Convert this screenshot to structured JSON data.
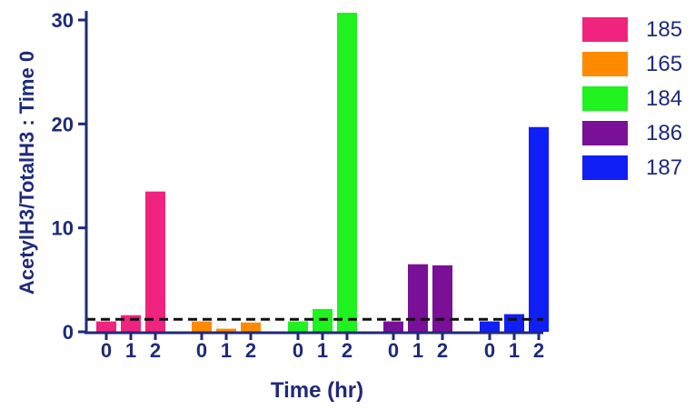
{
  "chart_data": {
    "type": "bar",
    "xlabel": "Time (hr)",
    "ylabel": "AcetylH3/TotalH3 : Time 0",
    "ylim": [
      0,
      31
    ],
    "yticks": [
      0,
      10,
      20,
      30
    ],
    "reference_line": 1.2,
    "grid": false,
    "legend_position": "right",
    "series": [
      {
        "name": "185",
        "color": "#f0237f",
        "categories": [
          "0",
          "1",
          "2"
        ],
        "values": [
          1.0,
          1.6,
          13.5
        ]
      },
      {
        "name": "165",
        "color": "#ff8a00",
        "categories": [
          "0",
          "1",
          "2"
        ],
        "values": [
          1.0,
          0.3,
          0.9
        ]
      },
      {
        "name": "184",
        "color": "#1ff21f",
        "categories": [
          "0",
          "1",
          "2"
        ],
        "values": [
          1.0,
          2.2,
          30.7
        ]
      },
      {
        "name": "186",
        "color": "#7a0f98",
        "categories": [
          "0",
          "1",
          "2"
        ],
        "values": [
          1.0,
          6.5,
          6.4
        ]
      },
      {
        "name": "187",
        "color": "#0f1ff5",
        "categories": [
          "0",
          "1",
          "2"
        ],
        "values": [
          1.0,
          1.7,
          19.7
        ]
      }
    ]
  }
}
